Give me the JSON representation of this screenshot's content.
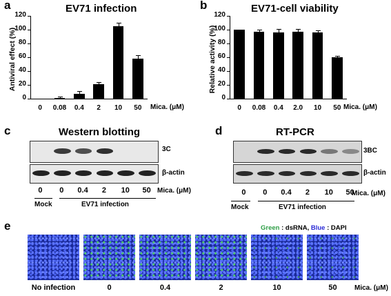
{
  "panels": {
    "a": {
      "letter": "a",
      "title": "EV71 infection",
      "ylabel": "Antiviral effect (%)",
      "yticks": [
        "0",
        "20",
        "40",
        "60",
        "80",
        "100",
        "120"
      ],
      "xticks": [
        "0",
        "0.08",
        "0.4",
        "2",
        "10",
        "50"
      ],
      "unit": "Mica. (μM)"
    },
    "b": {
      "letter": "b",
      "title": "EV71-cell viability",
      "ylabel": "Relative activity (%)",
      "yticks": [
        "0",
        "20",
        "40",
        "60",
        "80",
        "100",
        "120"
      ],
      "xticks": [
        "0",
        "0.08",
        "0.4",
        "2.0",
        "10",
        "50"
      ],
      "unit": "Mica. (μM)"
    },
    "c": {
      "letter": "c",
      "title": "Western blotting",
      "band1": "3C",
      "band2": "β-actin",
      "lanes": [
        "0",
        "0",
        "0.4",
        "2",
        "10",
        "50"
      ],
      "unit": "Mica. (μM)",
      "mock": "Mock",
      "group": "EV71 infection"
    },
    "d": {
      "letter": "d",
      "title": "RT-PCR",
      "band1": "3BC",
      "band2": "β-actin",
      "lanes": [
        "0",
        "0",
        "0.4",
        "2",
        "10",
        "50"
      ],
      "unit": "Mica. (μM)",
      "mock": "Mock",
      "group": "EV71 infection"
    },
    "e": {
      "letter": "e",
      "legend_green": "Green",
      "legend_green_rest": " : dsRNA, ",
      "legend_blue": "Blue",
      "legend_blue_rest": " : DAPI",
      "labels": [
        "No infection",
        "0",
        "0.4",
        "2",
        "10",
        "50"
      ],
      "unit": "Mica. (μM)"
    }
  },
  "colors": {
    "green": "#2e9e46",
    "blue": "#2b2bd6"
  },
  "chart_data": [
    {
      "type": "bar",
      "title": "EV71 infection",
      "xlabel": "Mica. (μM)",
      "ylabel": "Antiviral effect (%)",
      "categories": [
        "0",
        "0.08",
        "0.4",
        "2",
        "10",
        "50"
      ],
      "values": [
        0,
        1,
        7,
        21,
        105,
        58
      ],
      "errors": [
        0,
        2,
        4,
        3,
        5,
        5
      ],
      "ylim": [
        0,
        120
      ]
    },
    {
      "type": "bar",
      "title": "EV71-cell viability",
      "xlabel": "Mica. (μM)",
      "ylabel": "Relative activity (%)",
      "categories": [
        "0",
        "0.08",
        "0.4",
        "2.0",
        "10",
        "50"
      ],
      "values": [
        100,
        97,
        96,
        97,
        96,
        60
      ],
      "errors": [
        0,
        3,
        5,
        4,
        3,
        2
      ],
      "ylim": [
        0,
        120
      ]
    }
  ],
  "blots": {
    "c_top": [
      0.0,
      0.85,
      0.75,
      0.9,
      0.0,
      0.0
    ],
    "c_bottom": [
      1,
      1,
      1,
      1,
      1,
      1
    ],
    "d_top": [
      0.0,
      1,
      1,
      1,
      0.55,
      0.45
    ],
    "d_bottom": [
      1,
      1,
      1,
      1,
      1,
      1
    ]
  }
}
